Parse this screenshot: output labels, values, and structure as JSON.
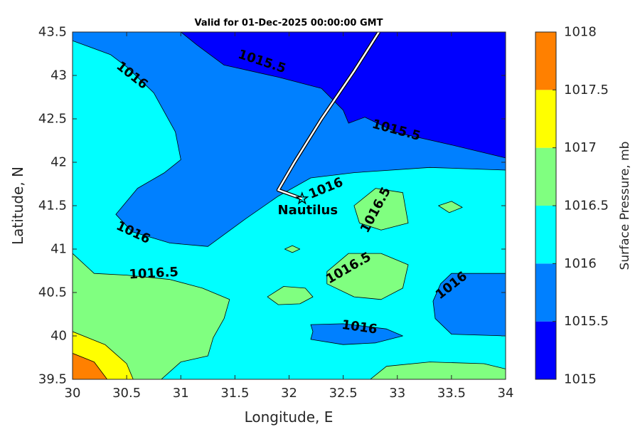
{
  "chart_data": {
    "type": "contourf",
    "title": "Valid for 01-Dec-2025 00:00:00 GMT",
    "xlabel": "Longitude, E",
    "ylabel": "Latitude, N",
    "xlim": [
      30,
      34
    ],
    "ylim": [
      39.5,
      43.5
    ],
    "xticks": [
      30,
      30.5,
      31,
      31.5,
      32,
      32.5,
      33,
      33.5,
      34
    ],
    "xtick_labels": [
      "30",
      "30.5",
      "31",
      "31.5",
      "32",
      "32.5",
      "33",
      "33.5",
      "34"
    ],
    "yticks": [
      39.5,
      40,
      40.5,
      41,
      41.5,
      42,
      42.5,
      43,
      43.5
    ],
    "ytick_labels": [
      "39.5",
      "40",
      "40.5",
      "41",
      "41.5",
      "42",
      "42.5",
      "43",
      "43.5"
    ],
    "colorbar": {
      "label": "Surface Pressure, mb",
      "levels": [
        1015,
        1015.5,
        1016,
        1016.5,
        1017,
        1017.5,
        1018
      ],
      "tick_labels": [
        "1015",
        "1015.5",
        "1016",
        "1016.5",
        "1017",
        "1017.5",
        "1018"
      ],
      "colors": [
        "#0000ff",
        "#0080ff",
        "#00ffff",
        "#80ff80",
        "#ffff00",
        "#ff8000",
        "#ff0000"
      ]
    },
    "regions": [
      {
        "range": [
          1015.5,
          1016
        ],
        "pts": [
          [
            30.0,
            43.5
          ],
          [
            34.0,
            43.5
          ],
          [
            34.0,
            41.91
          ],
          [
            33.3,
            41.94
          ],
          [
            32.6,
            41.88
          ],
          [
            32.2,
            41.82
          ],
          [
            31.9,
            41.61
          ],
          [
            31.6,
            41.35
          ],
          [
            31.25,
            41.03
          ],
          [
            30.9,
            41.07
          ],
          [
            30.55,
            41.2
          ],
          [
            30.4,
            41.4
          ],
          [
            30.6,
            41.7
          ],
          [
            30.85,
            41.88
          ],
          [
            31.0,
            42.03
          ],
          [
            30.95,
            42.35
          ],
          [
            30.75,
            42.8
          ],
          [
            30.5,
            43.1
          ],
          [
            30.35,
            43.24
          ],
          [
            30.0,
            43.4
          ]
        ]
      },
      {
        "range": [
          1015,
          1015.5
        ],
        "pts": [
          [
            31.0,
            43.5
          ],
          [
            34.0,
            43.5
          ],
          [
            34.0,
            42.05
          ],
          [
            33.5,
            42.2
          ],
          [
            33.0,
            42.34
          ],
          [
            32.7,
            42.52
          ],
          [
            32.55,
            42.45
          ],
          [
            32.5,
            42.6
          ],
          [
            32.3,
            42.85
          ],
          [
            31.9,
            42.98
          ],
          [
            31.4,
            43.12
          ],
          [
            31.15,
            43.35
          ]
        ]
      },
      {
        "range": [
          1015.5,
          1016
        ],
        "pts": [
          [
            33.4,
            40.6
          ],
          [
            33.5,
            40.72
          ],
          [
            34.0,
            40.72
          ],
          [
            34.0,
            40.0
          ],
          [
            33.5,
            40.02
          ],
          [
            33.35,
            40.2
          ],
          [
            33.33,
            40.4
          ]
        ]
      },
      {
        "range": [
          1015.5,
          1016
        ],
        "pts": [
          [
            32.2,
            40.13
          ],
          [
            32.5,
            40.14
          ],
          [
            32.9,
            40.08
          ],
          [
            33.05,
            40.0
          ],
          [
            32.8,
            39.92
          ],
          [
            32.5,
            39.9
          ],
          [
            32.2,
            39.96
          ],
          [
            32.22,
            40.05
          ]
        ]
      },
      {
        "range": [
          1016.5,
          1017
        ],
        "pts": [
          [
            30.0,
            40.95
          ],
          [
            30.2,
            40.72
          ],
          [
            30.5,
            40.7
          ],
          [
            30.9,
            40.65
          ],
          [
            31.2,
            40.55
          ],
          [
            31.45,
            40.42
          ],
          [
            31.4,
            40.2
          ],
          [
            31.3,
            39.98
          ],
          [
            31.25,
            39.77
          ],
          [
            31.0,
            39.7
          ],
          [
            30.82,
            39.5
          ],
          [
            30.0,
            39.5
          ]
        ]
      },
      {
        "range": [
          1017,
          1017.5
        ],
        "pts": [
          [
            30.0,
            40.05
          ],
          [
            30.3,
            39.9
          ],
          [
            30.5,
            39.68
          ],
          [
            30.56,
            39.5
          ],
          [
            30.0,
            39.5
          ]
        ]
      },
      {
        "range": [
          1017.5,
          1018
        ],
        "pts": [
          [
            30.0,
            39.8
          ],
          [
            30.2,
            39.7
          ],
          [
            30.32,
            39.5
          ],
          [
            30.0,
            39.5
          ]
        ]
      },
      {
        "range": [
          1016.5,
          1017
        ],
        "pts": [
          [
            32.35,
            40.74
          ],
          [
            32.55,
            40.95
          ],
          [
            32.85,
            40.95
          ],
          [
            33.1,
            40.82
          ],
          [
            33.05,
            40.55
          ],
          [
            32.85,
            40.42
          ],
          [
            32.6,
            40.45
          ],
          [
            32.35,
            40.6
          ]
        ]
      },
      {
        "range": [
          1016.5,
          1017
        ],
        "pts": [
          [
            32.6,
            41.5
          ],
          [
            32.8,
            41.7
          ],
          [
            33.05,
            41.65
          ],
          [
            33.1,
            41.3
          ],
          [
            32.85,
            41.22
          ],
          [
            32.65,
            41.3
          ]
        ]
      },
      {
        "range": [
          1016.5,
          1017
        ],
        "pts": [
          [
            31.8,
            40.45
          ],
          [
            31.95,
            40.57
          ],
          [
            32.15,
            40.55
          ],
          [
            32.22,
            40.45
          ],
          [
            32.1,
            40.37
          ],
          [
            31.9,
            40.36
          ]
        ]
      },
      {
        "range": [
          1016.5,
          1017
        ],
        "pts": [
          [
            33.38,
            41.5
          ],
          [
            33.5,
            41.55
          ],
          [
            33.6,
            41.48
          ],
          [
            33.48,
            41.42
          ]
        ]
      },
      {
        "range": [
          1016.5,
          1017
        ],
        "pts": [
          [
            31.96,
            41.0
          ],
          [
            32.03,
            41.04
          ],
          [
            32.1,
            41.0
          ],
          [
            32.03,
            40.96
          ]
        ]
      },
      {
        "range": [
          1016.5,
          1017
        ],
        "pts": [
          [
            32.75,
            39.5
          ],
          [
            32.9,
            39.65
          ],
          [
            33.3,
            39.7
          ],
          [
            33.8,
            39.68
          ],
          [
            34.0,
            39.62
          ],
          [
            34.0,
            39.5
          ]
        ]
      }
    ],
    "contour_labels": [
      {
        "text": "1015.5",
        "x": 31.75,
        "y": 43.16,
        "angle": 18
      },
      {
        "text": "1015.5",
        "x": 32.99,
        "y": 42.37,
        "angle": 15
      },
      {
        "text": "1016",
        "x": 30.55,
        "y": 43.0,
        "angle": 38
      },
      {
        "text": "1016",
        "x": 32.34,
        "y": 41.7,
        "angle": -22
      },
      {
        "text": "1016",
        "x": 30.56,
        "y": 41.19,
        "angle": 25
      },
      {
        "text": "1016",
        "x": 32.65,
        "y": 40.1,
        "angle": 8
      },
      {
        "text": "1016",
        "x": 33.5,
        "y": 40.58,
        "angle": -38
      },
      {
        "text": "1016.5",
        "x": 32.8,
        "y": 41.45,
        "angle": -62
      },
      {
        "text": "1016.5",
        "x": 32.55,
        "y": 40.78,
        "angle": -30
      },
      {
        "text": "1016.5",
        "x": 30.75,
        "y": 40.72,
        "angle": -3
      }
    ],
    "track": [
      [
        32.83,
        43.5
      ],
      [
        32.6,
        43.05
      ],
      [
        32.3,
        42.5
      ],
      [
        32.05,
        42.0
      ],
      [
        31.9,
        41.68
      ],
      [
        32.12,
        41.58
      ]
    ],
    "station": {
      "name": "Nautilus",
      "lon": 32.12,
      "lat": 41.58
    }
  }
}
